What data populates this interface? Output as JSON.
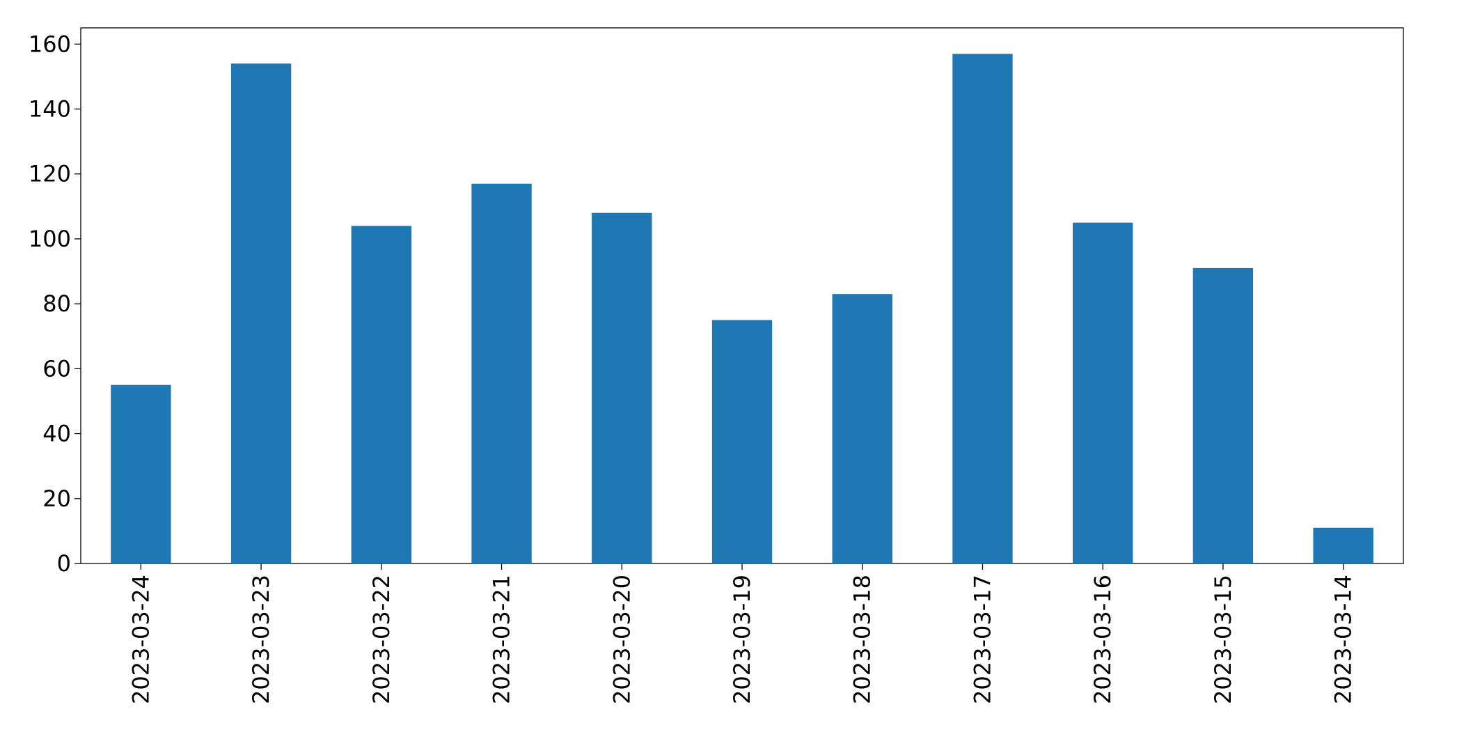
{
  "chart_data": {
    "type": "bar",
    "categories": [
      "2023-03-24",
      "2023-03-23",
      "2023-03-22",
      "2023-03-21",
      "2023-03-20",
      "2023-03-19",
      "2023-03-18",
      "2023-03-17",
      "2023-03-16",
      "2023-03-15",
      "2023-03-14"
    ],
    "values": [
      55,
      154,
      104,
      117,
      108,
      75,
      83,
      157,
      105,
      91,
      11
    ],
    "color": "#1f77b4",
    "ylim": [
      0,
      165
    ],
    "yticks": [
      0,
      20,
      40,
      60,
      80,
      100,
      120,
      140,
      160
    ],
    "grid": false
  }
}
